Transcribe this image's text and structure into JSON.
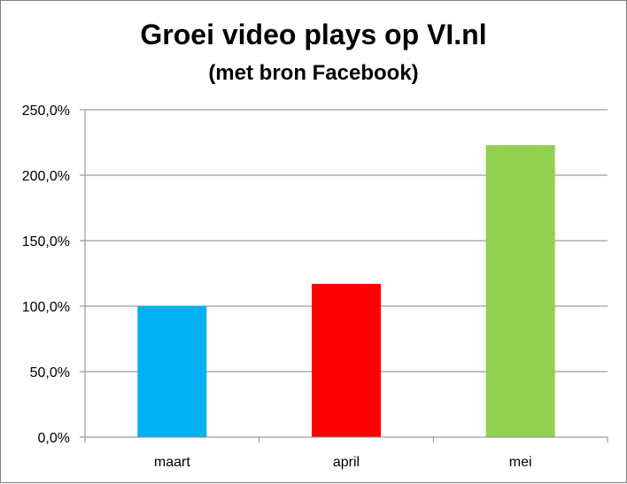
{
  "chart_data": {
    "type": "bar",
    "title": "Groei video plays op VI.nl",
    "subtitle": "(met bron Facebook)",
    "categories": [
      "maart",
      "april",
      "mei"
    ],
    "values": [
      100.0,
      117.0,
      223.0
    ],
    "colors": [
      "#00b0f0",
      "#ff0000",
      "#92d050"
    ],
    "ylim": [
      0,
      250
    ],
    "yticks": [
      0,
      50,
      100,
      150,
      200,
      250
    ],
    "ytick_labels": [
      "0,0%",
      "50,0%",
      "100,0%",
      "150,0%",
      "200,0%",
      "250,0%"
    ],
    "grid": true,
    "xlabel": "",
    "ylabel": ""
  }
}
